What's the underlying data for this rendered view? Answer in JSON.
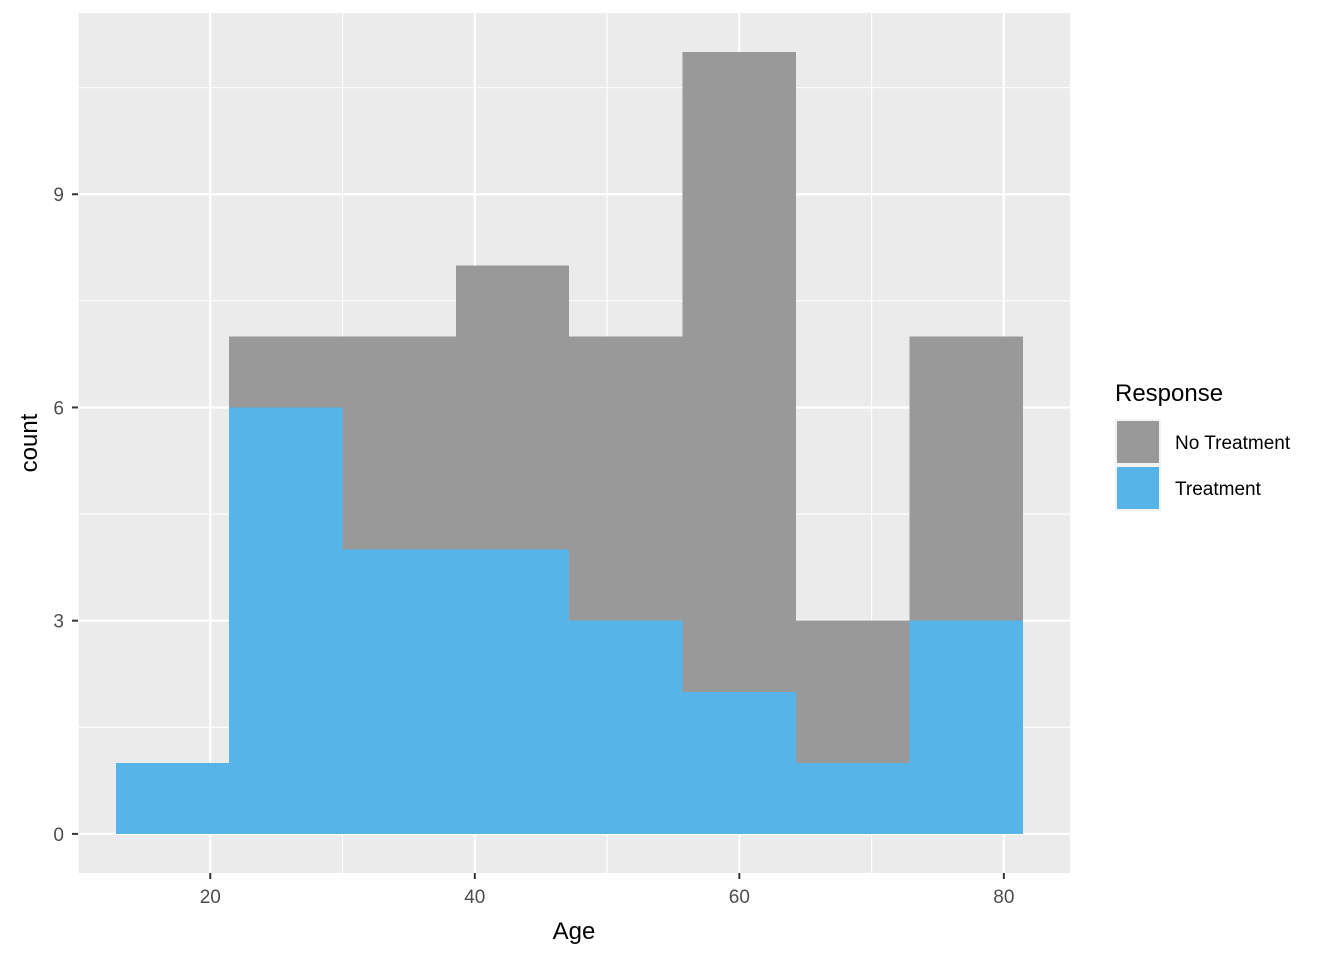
{
  "chart_data": {
    "type": "bar",
    "subtype": "stacked-histogram",
    "xlabel": "Age",
    "ylabel": "count",
    "xlim": [
      10,
      85
    ],
    "ylim": [
      -0.55,
      11.55
    ],
    "x_ticks": [
      20,
      40,
      60,
      80
    ],
    "y_ticks": [
      0,
      3,
      6,
      9
    ],
    "grid": true,
    "legend": {
      "title": "Response",
      "position": "right"
    },
    "bins": [
      {
        "x_start": 12.86,
        "x_end": 21.43
      },
      {
        "x_start": 21.43,
        "x_end": 30.0
      },
      {
        "x_start": 30.0,
        "x_end": 38.57
      },
      {
        "x_start": 38.57,
        "x_end": 47.14
      },
      {
        "x_start": 47.14,
        "x_end": 55.71
      },
      {
        "x_start": 55.71,
        "x_end": 64.29
      },
      {
        "x_start": 64.29,
        "x_end": 72.86
      },
      {
        "x_start": 72.86,
        "x_end": 81.43
      }
    ],
    "series": [
      {
        "name": "Treatment",
        "color": "#56B4E9",
        "values": [
          1,
          6,
          4,
          4,
          3,
          2,
          1,
          3
        ]
      },
      {
        "name": "No Treatment",
        "color": "#999999",
        "values": [
          0,
          1,
          3,
          4,
          4,
          9,
          2,
          4
        ]
      }
    ],
    "legend_order": [
      "No Treatment",
      "Treatment"
    ],
    "colors": {
      "panel_background": "#EBEBEB",
      "grid": "#FFFFFF"
    }
  }
}
